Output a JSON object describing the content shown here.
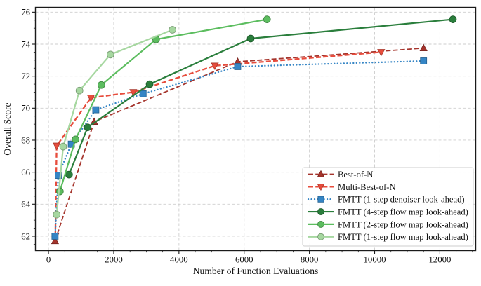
{
  "chart_data": {
    "type": "line",
    "title": "",
    "xlabel": "Number of Function Evaluations",
    "ylabel": "Overall Score",
    "xlim": [
      -400,
      13100
    ],
    "ylim": [
      61.1,
      76.3
    ],
    "xticks": [
      0,
      2000,
      4000,
      6000,
      8000,
      10000,
      12000
    ],
    "yticks": [
      62,
      64,
      66,
      68,
      70,
      72,
      74,
      76
    ],
    "x_minor_step": 500,
    "y_minor_step": 0.5,
    "grid": true,
    "grid_color": "#cdcdcd",
    "frame_color": "#1a1a1a",
    "legend_position": "lower right",
    "series": [
      {
        "name": "Best-of-N",
        "color": "#a5342c",
        "line_style": "dashed",
        "line_width": 1.8,
        "marker": "triangle-up",
        "points": [
          [
            200,
            61.7
          ],
          [
            1400,
            69.15
          ],
          [
            5800,
            72.9
          ],
          [
            11500,
            73.75
          ]
        ]
      },
      {
        "name": "Multi-Best-of-N",
        "color": "#e74c3c",
        "line_style": "dashed",
        "line_width": 2.3,
        "marker": "triangle-down",
        "points": [
          [
            210,
            62.0
          ],
          [
            250,
            67.65
          ],
          [
            1300,
            70.65
          ],
          [
            2600,
            71.0
          ],
          [
            5100,
            72.65
          ],
          [
            10200,
            73.5
          ]
        ]
      },
      {
        "name": "FMTT (1-step denoiser look-ahead)",
        "color": "#3585c5",
        "line_style": "dotted",
        "line_width": 2.3,
        "marker": "square",
        "points": [
          [
            200,
            62.0
          ],
          [
            300,
            65.8
          ],
          [
            700,
            67.75
          ],
          [
            1450,
            69.9
          ],
          [
            2900,
            70.9
          ],
          [
            5800,
            72.6
          ],
          [
            11500,
            72.95
          ]
        ]
      },
      {
        "name": "FMTT (4-step flow map look-ahead)",
        "color": "#2a7e3c",
        "line_style": "solid",
        "line_width": 2.2,
        "marker": "circle",
        "points": [
          [
            630,
            65.85
          ],
          [
            1200,
            68.8
          ],
          [
            3100,
            71.5
          ],
          [
            6200,
            74.35
          ],
          [
            12400,
            75.55
          ]
        ]
      },
      {
        "name": "FMTT (2-step flow map look-ahead)",
        "color": "#5cbd5f",
        "line_style": "solid",
        "line_width": 2.2,
        "marker": "circle",
        "points": [
          [
            350,
            64.8
          ],
          [
            830,
            68.05
          ],
          [
            1620,
            71.45
          ],
          [
            3300,
            74.3
          ],
          [
            6700,
            75.55
          ]
        ]
      },
      {
        "name": "FMTT (1-step flow map look-ahead)",
        "color": "#a6d7a0",
        "line_style": "solid",
        "line_width": 2.2,
        "marker": "circle",
        "points": [
          [
            250,
            63.35
          ],
          [
            450,
            67.6
          ],
          [
            950,
            71.1
          ],
          [
            1900,
            73.35
          ],
          [
            3800,
            74.9
          ]
        ]
      }
    ]
  }
}
